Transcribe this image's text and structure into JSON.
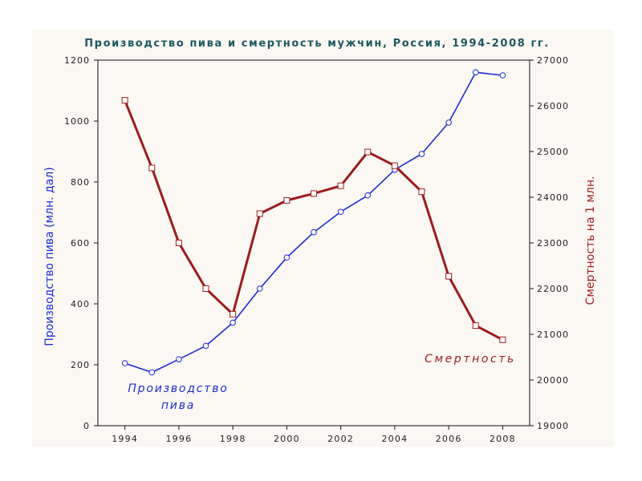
{
  "chart_data": {
    "type": "line",
    "title": "Производство пива и смертность мужчин, Россия, 1994-2008 гг.",
    "x": [
      1994,
      1995,
      1996,
      1997,
      1998,
      1999,
      2000,
      2001,
      2002,
      2003,
      2004,
      2005,
      2006,
      2007,
      2008
    ],
    "x_ticks": [
      "1994",
      "1996",
      "1998",
      "2000",
      "2002",
      "2004",
      "2006",
      "2008"
    ],
    "xlim": [
      1993,
      2009
    ],
    "left_axis": {
      "label": "Производство пива (млн. дал)",
      "ylim": [
        0,
        1200
      ],
      "ticks": [
        "0",
        "200",
        "400",
        "600",
        "800",
        "1000",
        "1200"
      ],
      "color": "#1f2ad6"
    },
    "right_axis": {
      "label": "Смертность на 1 млн.",
      "ylim": [
        19000,
        27000
      ],
      "ticks": [
        "19000",
        "20000",
        "21000",
        "22000",
        "23000",
        "24000",
        "25000",
        "26000",
        "27000"
      ],
      "color": "#9b1c1c"
    },
    "series": [
      {
        "name": "Производство пива",
        "axis": "left",
        "color": "#1f2ad6",
        "marker": "circle",
        "values": [
          205,
          175,
          218,
          262,
          338,
          450,
          552,
          635,
          702,
          756,
          840,
          892,
          995,
          1160,
          1150
        ]
      },
      {
        "name": "Смертность",
        "axis": "right",
        "color": "#9b1c1c",
        "marker": "square",
        "values": [
          26120,
          24640,
          23000,
          22000,
          21440,
          23640,
          23930,
          24080,
          24250,
          24990,
          24690,
          24120,
          22270,
          21190,
          20880
        ]
      }
    ],
    "annotations": {
      "beer_line1": "Производство",
      "beer_line2": "пива",
      "mortality": "Смертность"
    },
    "grid": false
  }
}
